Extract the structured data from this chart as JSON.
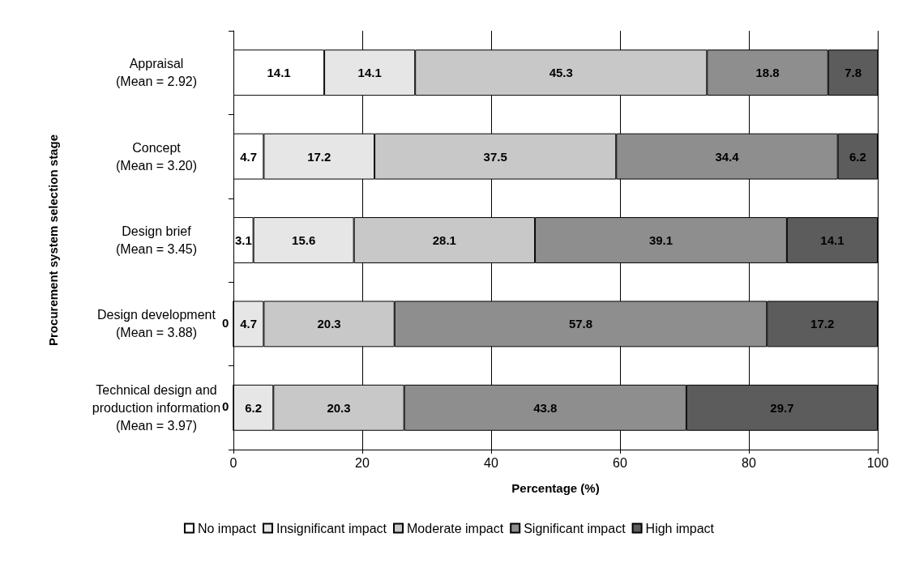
{
  "chart_data": {
    "type": "bar",
    "orientation": "horizontal",
    "stacked": true,
    "grid": "x",
    "legend": "bottom",
    "annotations": [
      {
        "text": "0",
        "x": 0,
        "y": "Design development\n(Mean = 3.88)"
      },
      {
        "text": "0",
        "x": 0,
        "y": "Technical design and\nproduction information\n(Mean = 3.97)"
      }
    ],
    "xlabel": "Percentage (%)",
    "ylabel": "Procurement system selection stage",
    "categories": [
      "Appraisal\n(Mean = 2.92)",
      "Concept\n(Mean = 3.20)",
      "Design brief\n(Mean = 3.45)",
      "Design development\n(Mean = 3.88)",
      "Technical design and\nproduction information\n(Mean = 3.97)"
    ],
    "xlim": [
      0,
      100
    ],
    "xticks": [
      0,
      20,
      40,
      60,
      80,
      100
    ],
    "series": [
      {
        "name": "No impact",
        "color": "#ffffff",
        "values": [
          14.1,
          4.7,
          3.1,
          0,
          0
        ],
        "value_labels": [
          "14.1",
          "4.7",
          "3.1",
          null,
          null
        ]
      },
      {
        "name": "Insignificant impact",
        "color": "#e6e6e6",
        "values": [
          14.1,
          17.2,
          15.6,
          4.7,
          6.2
        ],
        "value_labels": [
          "14.1",
          "17.2",
          "15.6",
          "4.7",
          "6.2"
        ]
      },
      {
        "name": "Moderate impact",
        "color": "#c8c8c8",
        "values": [
          45.3,
          37.5,
          28.1,
          20.3,
          20.3
        ],
        "value_labels": [
          "45.3",
          "37.5",
          "28.1",
          "20.3",
          "20.3"
        ]
      },
      {
        "name": "Significant impact",
        "color": "#8e8e8e",
        "values": [
          18.8,
          34.4,
          39.1,
          57.8,
          43.8
        ],
        "value_labels": [
          "18.8",
          "34.4",
          "39.1",
          "57.8",
          "43.8"
        ]
      },
      {
        "name": "High impact",
        "color": "#5c5c5c",
        "values": [
          7.8,
          6.2,
          14.1,
          17.2,
          29.7
        ],
        "value_labels": [
          "7.8",
          "6.2",
          "14.1",
          "17.2",
          "29.7"
        ]
      }
    ]
  }
}
